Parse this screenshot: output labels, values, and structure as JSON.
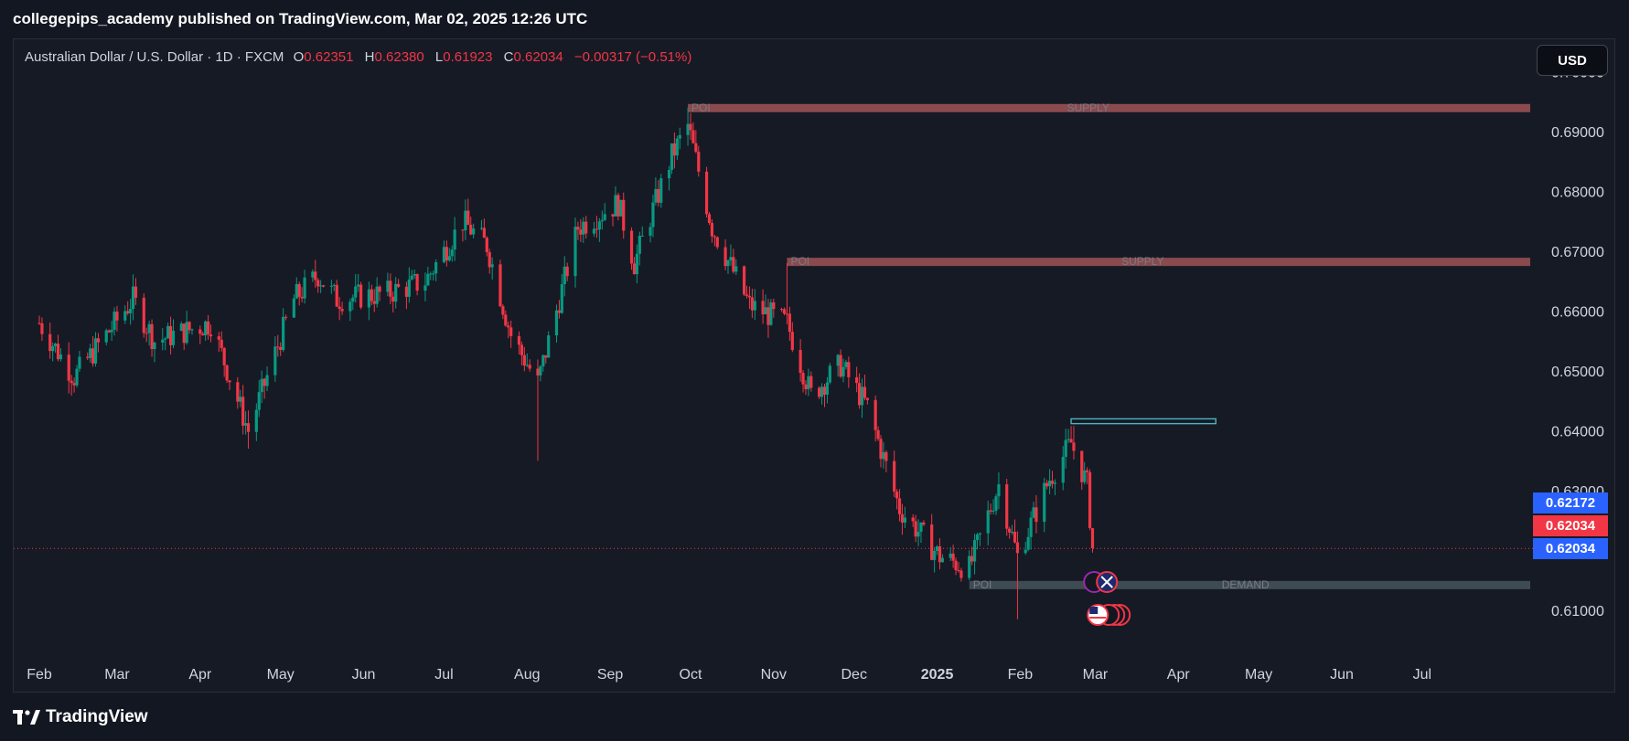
{
  "header": {
    "published_by": "collegepips_academy published on TradingView.com, Mar 02, 2025 12:26 UTC"
  },
  "legend": {
    "symbol": "Australian Dollar / U.S. Dollar · 1D · FXCM",
    "o_label": "O",
    "o_value": "0.62351",
    "h_label": "H",
    "h_value": "0.62380",
    "l_label": "L",
    "l_value": "0.61923",
    "c_label": "C",
    "c_value": "0.62034",
    "change": "−0.00317 (−0.51%)"
  },
  "currency_button": "USD",
  "price_badges": [
    {
      "value": "0.62172",
      "color": "#2962ff"
    },
    {
      "value": "0.62034",
      "color": "#f23645"
    },
    {
      "value": "0.62034",
      "color": "#2962ff"
    }
  ],
  "footer": {
    "logo_text": "TradingView"
  },
  "colors": {
    "up": "#089981",
    "down": "#f23645",
    "supply": "#8a4a4e",
    "demand": "#3f4b52",
    "axis_text": "#d1d4dc"
  },
  "chart_data": {
    "type": "candlestick",
    "title": "",
    "ylim": [
      0.6005,
      0.6995
    ],
    "yticks": [
      "0.61000",
      "0.62000",
      "0.63000",
      "0.64000",
      "0.65000",
      "0.66000",
      "0.67000",
      "0.68000",
      "0.69000",
      "0.70000"
    ],
    "x_labels": [
      "Feb",
      "Mar",
      "Apr",
      "May",
      "Jun",
      "Jul",
      "Aug",
      "Sep",
      "Oct",
      "Nov",
      "Dec",
      "2025",
      "Feb",
      "Mar",
      "Apr",
      "May",
      "Jun",
      "Jul"
    ],
    "close_path": [
      [
        "2024-02-01",
        0.658
      ],
      [
        "2024-02-14",
        0.649
      ],
      [
        "2024-03-07",
        0.662
      ],
      [
        "2024-03-15",
        0.655
      ],
      [
        "2024-04-05",
        0.658
      ],
      [
        "2024-04-19",
        0.64
      ],
      [
        "2024-05-06",
        0.662
      ],
      [
        "2024-05-15",
        0.666
      ],
      [
        "2024-05-22",
        0.662
      ],
      [
        "2024-06-10",
        0.663
      ],
      [
        "2024-06-24",
        0.665
      ],
      [
        "2024-07-08",
        0.675
      ],
      [
        "2024-07-17",
        0.671
      ],
      [
        "2024-07-26",
        0.656
      ],
      [
        "2024-08-05",
        0.648
      ],
      [
        "2024-08-20",
        0.674
      ],
      [
        "2024-09-04",
        0.678
      ],
      [
        "2024-09-10",
        0.668
      ],
      [
        "2024-09-24",
        0.686
      ],
      [
        "2024-09-30",
        0.691
      ],
      [
        "2024-10-09",
        0.674
      ],
      [
        "2024-10-23",
        0.661
      ],
      [
        "2024-11-06",
        0.658
      ],
      [
        "2024-11-15",
        0.646
      ],
      [
        "2024-11-26",
        0.651
      ],
      [
        "2024-12-06",
        0.644
      ],
      [
        "2024-12-18",
        0.627
      ],
      [
        "2025-01-02",
        0.619
      ],
      [
        "2025-01-13",
        0.617
      ],
      [
        "2025-01-24",
        0.631
      ],
      [
        "2025-01-31",
        0.619
      ],
      [
        "2025-02-12",
        0.632
      ],
      [
        "2025-02-20",
        0.638
      ],
      [
        "2025-02-26",
        0.631
      ],
      [
        "2025-02-28",
        0.62034
      ]
    ],
    "wicks": [
      [
        "2024-04-19",
        0.637
      ],
      [
        "2024-08-05",
        0.635
      ],
      [
        "2024-09-30",
        0.694
      ],
      [
        "2024-11-06",
        0.668
      ],
      [
        "2025-01-31",
        0.6085
      ],
      [
        "2025-02-21",
        0.6408
      ]
    ],
    "zones": [
      {
        "name": "SUPPLY",
        "left_label": "POI",
        "type": "supply",
        "start": "2024-09-30",
        "price": 0.694
      },
      {
        "name": "SUPPLY",
        "left_label": "POI",
        "type": "supply",
        "start": "2024-11-06",
        "price": 0.6683
      },
      {
        "name": "DEMAND",
        "left_label": "POI",
        "type": "demand",
        "start": "2025-01-13",
        "price": 0.6143
      }
    ],
    "target_box": {
      "start": "2025-02-20",
      "end": "2025-04-15",
      "top": 0.642,
      "bottom": 0.6412
    },
    "last_price": 0.62034,
    "events": [
      {
        "icon": "australia-flag-icon",
        "date": "2025-03-04",
        "row": 1
      },
      {
        "icon": "us-flag-icon",
        "date": "2025-03-04",
        "row": 2
      }
    ]
  }
}
